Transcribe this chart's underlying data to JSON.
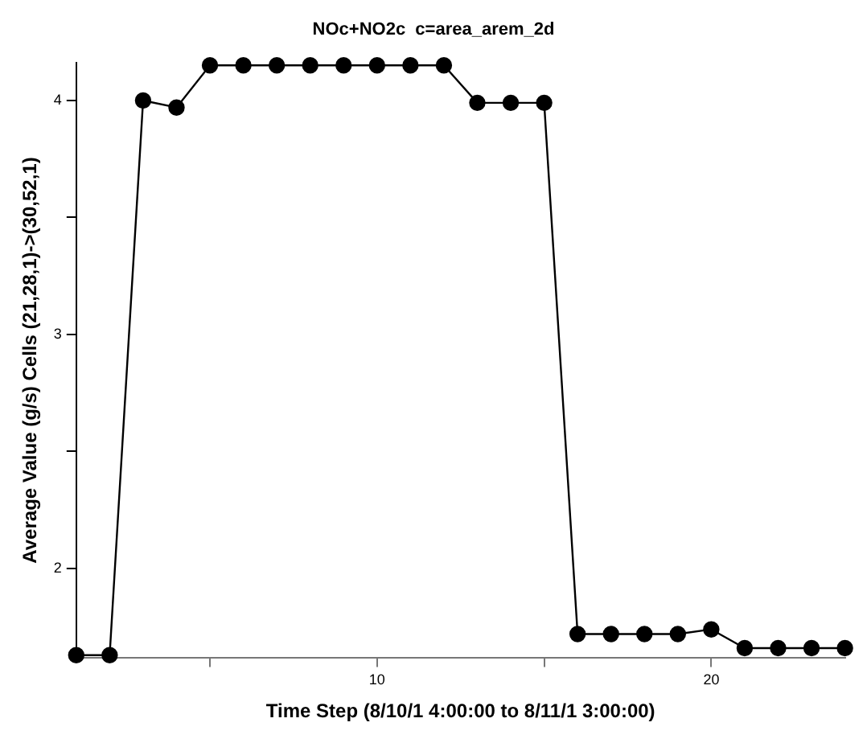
{
  "chart_data": {
    "type": "line",
    "title": "NOc+NO2c  c=area_arem_2d",
    "xlabel": "Time Step (8/10/1 4:00:00 to 8/11/1 3:00:00)",
    "ylabel": "Average Value (g/s) Cells (21,28,1)->(30,52,1)",
    "x": [
      1,
      2,
      3,
      4,
      5,
      6,
      7,
      8,
      9,
      10,
      11,
      12,
      13,
      14,
      15,
      16,
      17,
      18,
      19,
      20,
      21,
      22,
      23,
      24
    ],
    "series": [
      {
        "color": "#000000",
        "values": [
          1.63,
          1.63,
          4.0,
          3.97,
          4.15,
          4.15,
          4.15,
          4.15,
          4.15,
          4.15,
          4.15,
          4.15,
          3.99,
          3.99,
          3.99,
          1.72,
          1.72,
          1.72,
          1.72,
          1.74,
          1.66,
          1.66,
          1.66,
          1.66
        ]
      }
    ],
    "xlim": [
      1,
      24
    ],
    "xticks": [
      {
        "value": 5,
        "label": null
      },
      10,
      {
        "value": 15,
        "label": null
      },
      20
    ],
    "ylim": [
      1.62,
      4.16
    ],
    "yticks": [
      2,
      {
        "value": 2.5,
        "label": null
      },
      3,
      {
        "value": 3.5,
        "label": null
      },
      4
    ],
    "grid": false,
    "legend": false,
    "marker": "circle",
    "line_style": "solid"
  }
}
